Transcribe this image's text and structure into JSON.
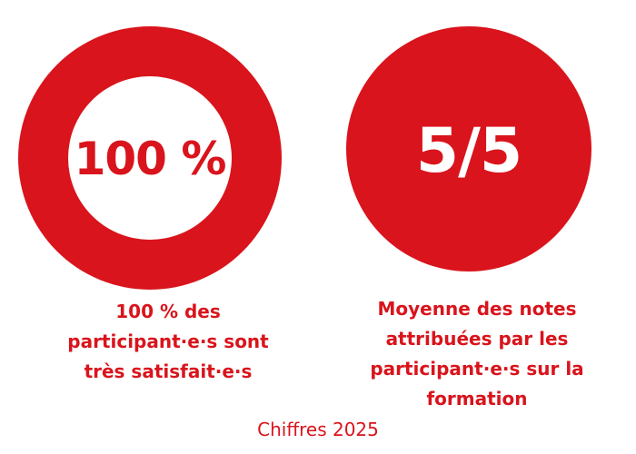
{
  "colors": {
    "accent": "#d9141c",
    "background": "#ffffff"
  },
  "stats": [
    {
      "value": "100 %",
      "caption_lines": [
        "100 % des",
        "participant·e·s sont",
        "très satisfait·e·s"
      ]
    },
    {
      "value": "5/5",
      "caption_lines": [
        "Moyenne des notes",
        "attribuées par les",
        "participant·e·s sur la",
        "formation"
      ]
    }
  ],
  "footer": "Chiffres 2025"
}
